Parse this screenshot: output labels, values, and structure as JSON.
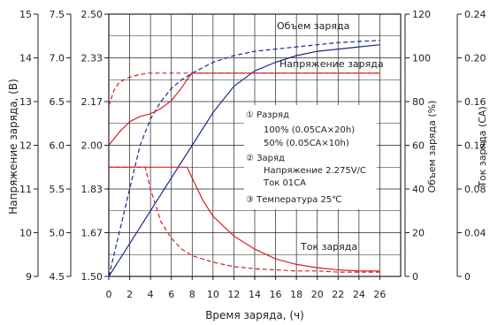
{
  "chart_data": {
    "type": "line",
    "title": "",
    "xlabel": "Время заряда, (ч)",
    "x_ticks": [
      "0",
      "2",
      "4",
      "6",
      "8",
      "10",
      "12",
      "14",
      "16",
      "18",
      "20",
      "22",
      "24",
      "26"
    ],
    "xlim": [
      0,
      28
    ],
    "axes": {
      "voltage_12v": {
        "label": "Напряжение заряда, (В)",
        "ticks": [
          "9",
          "10",
          "11",
          "12",
          "13",
          "14",
          "15"
        ],
        "lim": [
          9,
          15
        ]
      },
      "voltage_6v": {
        "label": "",
        "ticks": [
          "4.5",
          "5.0",
          "5.5",
          "6.0",
          "6.5",
          "7.0",
          "7.5"
        ],
        "lim": [
          4.5,
          7.5
        ]
      },
      "voltage_cell": {
        "label": "",
        "ticks": [
          "1.50",
          "1.67",
          "1.83",
          "2.00",
          "2.17",
          "2.33",
          "2.50"
        ],
        "lim": [
          1.5,
          2.5
        ]
      },
      "capacity": {
        "label": "Объем заряда (%)",
        "ticks": [
          "0",
          "20",
          "40",
          "60",
          "80",
          "100",
          "120"
        ],
        "lim": [
          0,
          120
        ]
      },
      "current": {
        "label": "Ток заряда (СА)",
        "ticks": [
          "0",
          "0.04",
          "0.08",
          "0.12",
          "0.16",
          "0.20",
          "0.24"
        ],
        "lim": [
          0,
          0.24
        ]
      }
    },
    "curve_labels": {
      "capacity": "Объем заряда",
      "voltage": "Напряжение заряда",
      "current": "Ток заряда"
    },
    "series": [
      {
        "name": "Объем заряда",
        "color": "#1a2a8c",
        "dash": false,
        "axis": "capacity",
        "x": [
          0,
          2,
          4,
          6,
          8,
          10,
          12,
          14,
          16,
          18,
          20,
          22,
          24,
          26
        ],
        "y": [
          0,
          15,
          30,
          45,
          60,
          75,
          87,
          94,
          98,
          101,
          103,
          104,
          105,
          106
        ]
      },
      {
        "name": "",
        "color": "#1a2a8c",
        "dash": true,
        "axis": "capacity",
        "x": [
          0,
          1,
          2,
          3,
          4,
          5,
          6,
          7,
          8,
          10,
          12,
          14,
          16,
          18,
          20,
          22,
          24,
          26
        ],
        "y": [
          0,
          20,
          40,
          60,
          72,
          80,
          86,
          90,
          93,
          98,
          101,
          103,
          104,
          105,
          106,
          107,
          107.5,
          108
        ]
      },
      {
        "name": "Напряжение заряда",
        "color": "#d62027",
        "dash": false,
        "axis": "voltage_cell",
        "x": [
          0,
          1,
          2,
          3,
          4,
          5,
          6,
          7,
          7.5,
          8,
          12,
          16,
          20,
          24,
          26
        ],
        "y": [
          2.0,
          2.05,
          2.09,
          2.11,
          2.12,
          2.14,
          2.17,
          2.22,
          2.25,
          2.275,
          2.275,
          2.275,
          2.275,
          2.275,
          2.275
        ]
      },
      {
        "name": "",
        "color": "#d62027",
        "dash": true,
        "axis": "voltage_cell",
        "x": [
          0,
          0.5,
          1,
          2,
          3,
          3.8,
          4,
          8,
          12,
          16,
          20,
          24,
          26
        ],
        "y": [
          2.15,
          2.21,
          2.24,
          2.26,
          2.27,
          2.275,
          2.275,
          2.275,
          2.275,
          2.275,
          2.275,
          2.275,
          2.275
        ]
      },
      {
        "name": "Ток заряда",
        "color": "#d62027",
        "dash": false,
        "axis": "current",
        "x": [
          0,
          2,
          4,
          6,
          7.5,
          8,
          9,
          10,
          12,
          14,
          16,
          18,
          20,
          22,
          24,
          26
        ],
        "y": [
          0.1,
          0.1,
          0.1,
          0.1,
          0.1,
          0.09,
          0.07,
          0.055,
          0.037,
          0.025,
          0.016,
          0.011,
          0.008,
          0.006,
          0.005,
          0.005
        ]
      },
      {
        "name": "",
        "color": "#d62027",
        "dash": true,
        "axis": "current",
        "x": [
          0,
          2,
          3.5,
          4,
          5,
          6,
          7,
          8,
          10,
          12,
          14,
          16,
          18,
          20,
          22,
          24,
          26
        ],
        "y": [
          0.1,
          0.1,
          0.1,
          0.08,
          0.05,
          0.035,
          0.025,
          0.019,
          0.013,
          0.009,
          0.007,
          0.006,
          0.005,
          0.005,
          0.004,
          0.004,
          0.004
        ]
      }
    ],
    "annotation": {
      "lines": [
        "① Разряд",
        "100% (0.05CA×20h)",
        "50% (0.05CA×10h)",
        "② Заряд",
        "Напряжение 2.275V/C",
        "Ток 01CA",
        "③ Температура 25℃"
      ]
    },
    "grid": true
  }
}
